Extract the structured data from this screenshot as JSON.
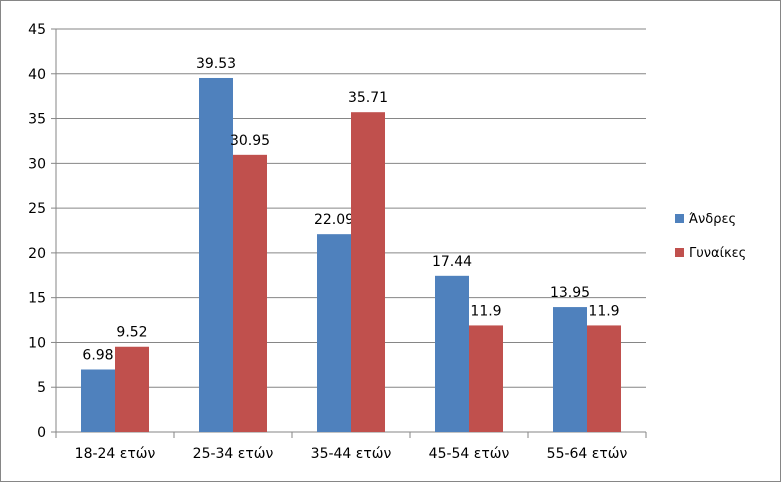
{
  "chart_data": {
    "type": "bar",
    "categories": [
      "18-24 ετών",
      "25-34 ετών",
      "35-44 ετών",
      "45-54 ετών",
      "55-64 ετών"
    ],
    "series": [
      {
        "name": "Άνδρες",
        "color": "#4F81BD",
        "values": [
          6.98,
          39.53,
          22.09,
          17.44,
          13.95
        ]
      },
      {
        "name": "Γυναίκες",
        "color": "#C0504D",
        "values": [
          9.52,
          30.95,
          35.71,
          11.9,
          11.9
        ]
      }
    ],
    "ylim": [
      0,
      45
    ],
    "yticks": [
      0,
      5,
      10,
      15,
      20,
      25,
      30,
      35,
      40,
      45
    ],
    "grid": true,
    "legend_position": "right",
    "title": "",
    "xlabel": "",
    "ylabel": ""
  }
}
